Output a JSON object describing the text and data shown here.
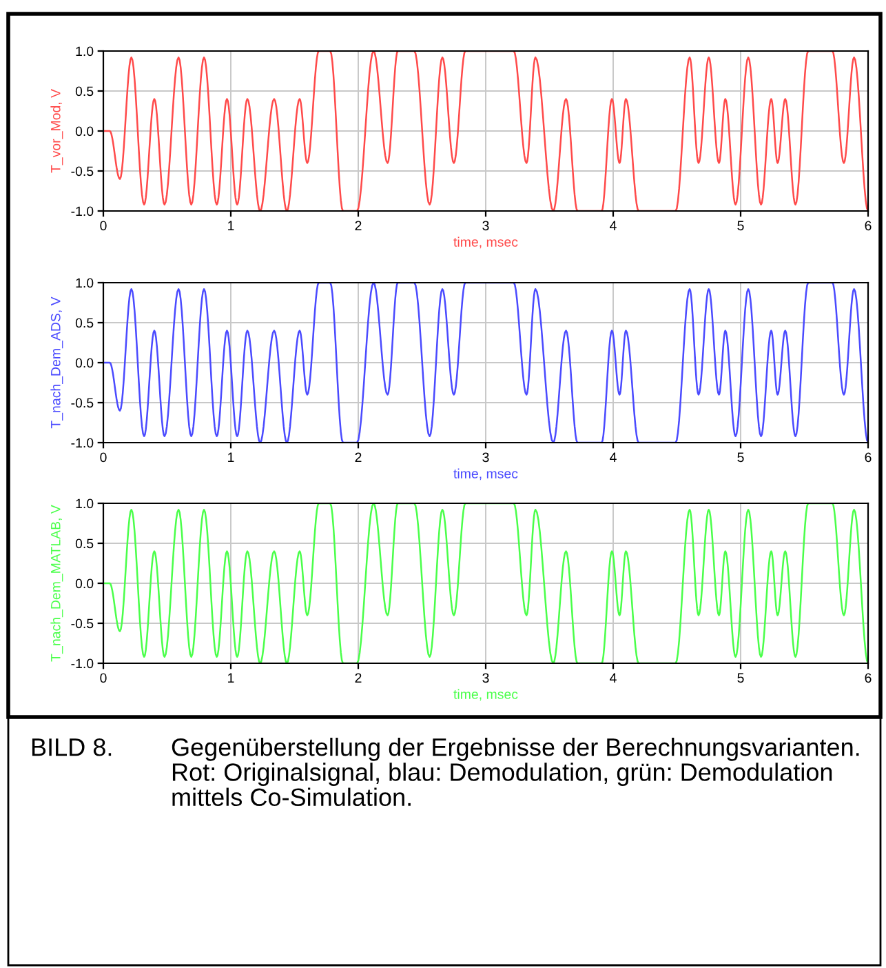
{
  "chart_data": [
    {
      "type": "line",
      "xlabel": "time, msec",
      "ylabel": "T_vor_Mod, V",
      "xlim": [
        0,
        6
      ],
      "xticks": [
        0,
        1,
        2,
        3,
        4,
        5,
        6
      ],
      "ylim": [
        -1.0,
        1.0
      ],
      "yticks": [
        {
          "value": -1.0,
          "label": "-1.0"
        },
        {
          "value": -0.5,
          "label": "-0.5"
        },
        {
          "value": 0.0,
          "label": "0.0"
        },
        {
          "value": 0.5,
          "label": "0.5"
        },
        {
          "value": 1.0,
          "label": "1.0"
        }
      ],
      "grid": true,
      "line_style": "solid",
      "x": [
        0,
        0.05,
        0.13,
        0.22,
        0.32,
        0.4,
        0.48,
        0.59,
        0.69,
        0.79,
        0.89,
        0.97,
        1.05,
        1.13,
        1.23,
        1.34,
        1.44,
        1.54,
        1.6,
        1.69,
        1.78,
        1.88,
        1.99,
        2.12,
        2.23,
        2.31,
        2.44,
        2.56,
        2.66,
        2.75,
        2.84,
        3.22,
        3.32,
        3.39,
        3.53,
        3.63,
        3.72,
        3.91,
        3.99,
        4.05,
        4.1,
        4.2,
        4.49,
        4.6,
        4.67,
        4.75,
        4.83,
        4.88,
        4.96,
        5.06,
        5.16,
        5.24,
        5.29,
        5.35,
        5.43,
        5.53,
        5.72,
        5.81,
        5.89,
        6.0
      ],
      "series": [
        {
          "color": "#ff4a4a",
          "values": [
            0,
            0,
            -0.6,
            0.92,
            -0.92,
            0.4,
            -0.92,
            0.92,
            -0.92,
            0.92,
            -0.92,
            0.4,
            -0.92,
            0.4,
            -1.0,
            0.4,
            -1.0,
            0.4,
            -0.4,
            1.0,
            1.0,
            -1.0,
            -1.0,
            1.0,
            -0.4,
            1.0,
            1.0,
            -0.92,
            0.92,
            -0.4,
            1.0,
            1.0,
            -0.4,
            0.92,
            -1.0,
            0.4,
            -1.0,
            -1.0,
            0.4,
            -0.4,
            0.4,
            -1.0,
            -1.0,
            0.92,
            -0.4,
            0.92,
            -0.4,
            0.4,
            -0.92,
            0.92,
            -0.92,
            0.4,
            -0.4,
            0.4,
            -0.92,
            1.0,
            1.0,
            -0.4,
            0.92,
            -1.0
          ]
        }
      ]
    },
    {
      "type": "line",
      "xlabel": "time, msec",
      "ylabel": "T_nach_Dem_ADS, V",
      "xlim": [
        0,
        6
      ],
      "xticks": [
        0,
        1,
        2,
        3,
        4,
        5,
        6
      ],
      "ylim": [
        -1.0,
        1.0
      ],
      "yticks": [
        {
          "value": -1.0,
          "label": "-1.0"
        },
        {
          "value": -0.5,
          "label": "-0.5"
        },
        {
          "value": 0.0,
          "label": "0.0"
        },
        {
          "value": 0.5,
          "label": "0.5"
        },
        {
          "value": 1.0,
          "label": "1.0"
        }
      ],
      "grid": true,
      "line_style": "solid",
      "x": [
        0,
        0.05,
        0.13,
        0.22,
        0.32,
        0.4,
        0.48,
        0.59,
        0.69,
        0.79,
        0.89,
        0.97,
        1.05,
        1.13,
        1.23,
        1.34,
        1.44,
        1.54,
        1.6,
        1.69,
        1.78,
        1.88,
        1.99,
        2.12,
        2.23,
        2.31,
        2.44,
        2.56,
        2.66,
        2.75,
        2.84,
        3.22,
        3.32,
        3.39,
        3.53,
        3.63,
        3.72,
        3.91,
        3.99,
        4.05,
        4.1,
        4.2,
        4.49,
        4.6,
        4.67,
        4.75,
        4.83,
        4.88,
        4.96,
        5.06,
        5.16,
        5.24,
        5.29,
        5.35,
        5.43,
        5.53,
        5.72,
        5.81,
        5.89,
        6.0
      ],
      "series": [
        {
          "color": "#4a4aff",
          "values": [
            0,
            0,
            -0.6,
            0.92,
            -0.92,
            0.4,
            -0.92,
            0.92,
            -0.92,
            0.92,
            -0.92,
            0.4,
            -0.92,
            0.4,
            -1.0,
            0.4,
            -1.0,
            0.4,
            -0.4,
            1.0,
            1.0,
            -1.0,
            -1.0,
            1.0,
            -0.4,
            1.0,
            1.0,
            -0.92,
            0.92,
            -0.4,
            1.0,
            1.0,
            -0.4,
            0.92,
            -1.0,
            0.4,
            -1.0,
            -1.0,
            0.4,
            -0.4,
            0.4,
            -1.0,
            -1.0,
            0.92,
            -0.4,
            0.92,
            -0.4,
            0.4,
            -0.92,
            0.92,
            -0.92,
            0.4,
            -0.4,
            0.4,
            -0.92,
            1.0,
            1.0,
            -0.4,
            0.92,
            -1.0
          ]
        }
      ]
    },
    {
      "type": "line",
      "xlabel": "time, msec",
      "ylabel": "T_nach_Dem_MATLAB, V",
      "xlim": [
        0,
        6
      ],
      "xticks": [
        0,
        1,
        2,
        3,
        4,
        5,
        6
      ],
      "ylim": [
        -1.0,
        1.0
      ],
      "yticks": [
        {
          "value": -1.0,
          "label": "-1.0"
        },
        {
          "value": -0.5,
          "label": "-0.5"
        },
        {
          "value": 0.0,
          "label": "0.0"
        },
        {
          "value": 0.5,
          "label": "0.5"
        },
        {
          "value": 1.0,
          "label": "1.0"
        }
      ],
      "grid": true,
      "line_style": "solid",
      "x": [
        0,
        0.05,
        0.13,
        0.22,
        0.32,
        0.4,
        0.48,
        0.59,
        0.69,
        0.79,
        0.89,
        0.97,
        1.05,
        1.13,
        1.23,
        1.34,
        1.44,
        1.54,
        1.6,
        1.69,
        1.78,
        1.88,
        1.99,
        2.12,
        2.23,
        2.31,
        2.44,
        2.56,
        2.66,
        2.75,
        2.84,
        3.22,
        3.32,
        3.39,
        3.53,
        3.63,
        3.72,
        3.91,
        3.99,
        4.05,
        4.1,
        4.2,
        4.49,
        4.6,
        4.67,
        4.75,
        4.83,
        4.88,
        4.96,
        5.06,
        5.16,
        5.24,
        5.29,
        5.35,
        5.43,
        5.53,
        5.72,
        5.81,
        5.89,
        6.0
      ],
      "series": [
        {
          "color": "#4aff4a",
          "values": [
            0,
            0,
            -0.6,
            0.92,
            -0.92,
            0.4,
            -0.92,
            0.92,
            -0.92,
            0.92,
            -0.92,
            0.4,
            -0.92,
            0.4,
            -1.0,
            0.4,
            -1.0,
            0.4,
            -0.4,
            1.0,
            1.0,
            -1.0,
            -1.0,
            1.0,
            -0.4,
            1.0,
            1.0,
            -0.92,
            0.92,
            -0.4,
            1.0,
            1.0,
            -0.4,
            0.92,
            -1.0,
            0.4,
            -1.0,
            -1.0,
            0.4,
            -0.4,
            0.4,
            -1.0,
            -1.0,
            0.92,
            -0.4,
            0.92,
            -0.4,
            0.4,
            -0.92,
            0.92,
            -0.92,
            0.4,
            -0.4,
            0.4,
            -0.92,
            1.0,
            1.0,
            -0.4,
            0.92,
            -1.0
          ]
        }
      ],
      "annotations": [
        "BILD 8.",
        "Gegenüberstellung der Ergebnisse der Berechnungsvarianten. Rot: Originalsignal, blau: Demodulation, grün: Demodulation mittels Co-Simulation."
      ]
    }
  ]
}
